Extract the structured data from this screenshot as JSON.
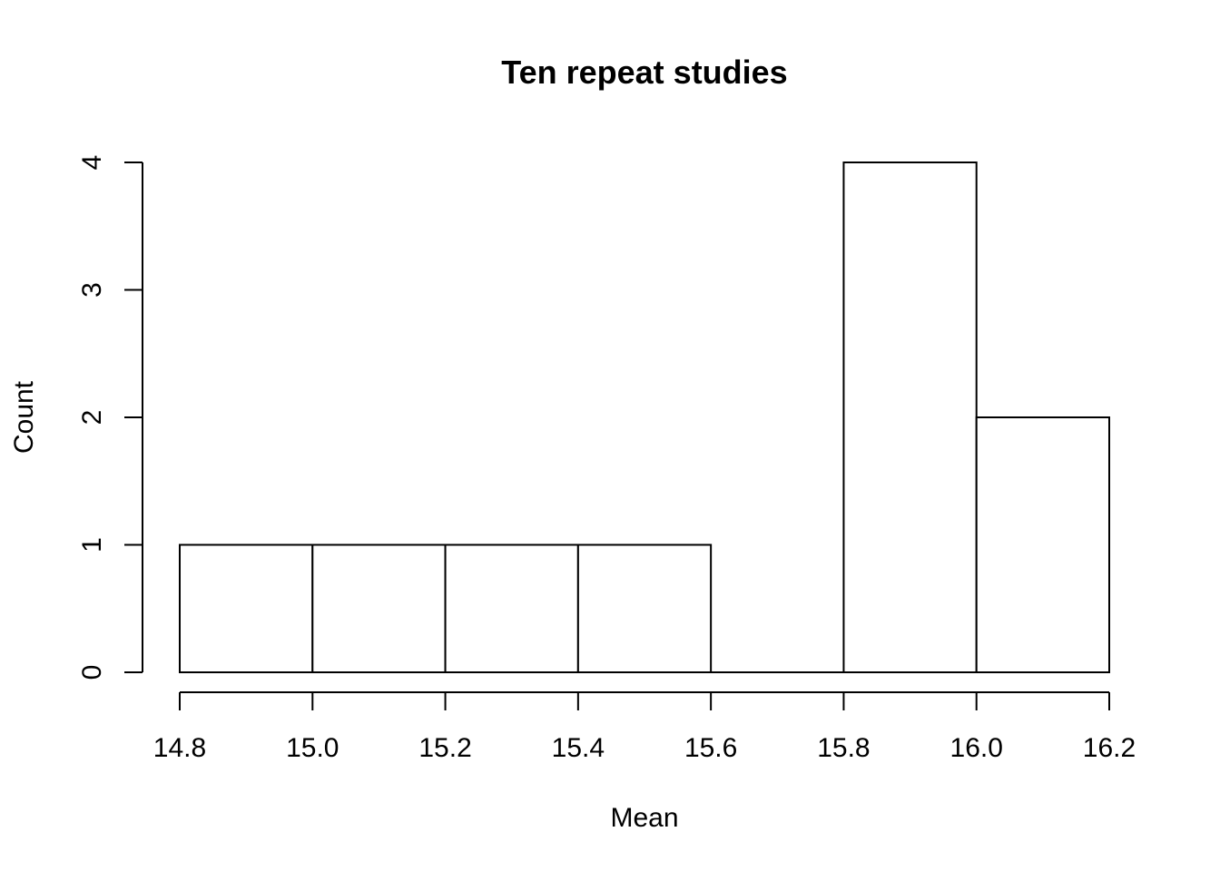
{
  "chart_data": {
    "type": "bar",
    "subtype": "histogram",
    "title": "Ten repeat studies",
    "xlabel": "Mean",
    "ylabel": "Count",
    "bins": [
      {
        "start": 14.8,
        "end": 15.0,
        "count": 1
      },
      {
        "start": 15.0,
        "end": 15.2,
        "count": 1
      },
      {
        "start": 15.2,
        "end": 15.4,
        "count": 1
      },
      {
        "start": 15.4,
        "end": 15.6,
        "count": 1
      },
      {
        "start": 15.6,
        "end": 15.8,
        "count": 0
      },
      {
        "start": 15.8,
        "end": 16.0,
        "count": 4
      },
      {
        "start": 16.0,
        "end": 16.2,
        "count": 2
      }
    ],
    "xlim": [
      14.8,
      16.2
    ],
    "ylim": [
      0,
      4
    ],
    "x_ticks": [
      "14.8",
      "15.0",
      "15.2",
      "15.4",
      "15.6",
      "15.8",
      "16.0",
      "16.2"
    ],
    "y_ticks": [
      "0",
      "1",
      "2",
      "3",
      "4"
    ],
    "grid": false,
    "bar_fill": "#ffffff",
    "bar_stroke": "#000000"
  }
}
